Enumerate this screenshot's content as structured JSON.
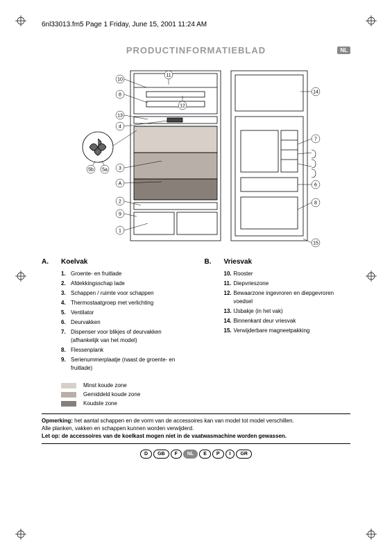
{
  "header": "6nl33013.fm5  Page 1  Friday, June 15, 2001  11:24 AM",
  "title": "PRODUCTINFORMATIEBLAD",
  "lang_tag": "NL",
  "diagram": {
    "callouts_left": [
      "10",
      "8",
      "13",
      "4",
      "5b",
      "5a",
      "3",
      "A",
      "2",
      "9",
      "1"
    ],
    "callouts_top": [
      "11",
      "12"
    ],
    "callouts_right": [
      "14",
      "7",
      "6",
      "8",
      "15"
    ],
    "fridge_zones": [
      {
        "color": "#d8d0c8"
      },
      {
        "color": "#b8b0a8"
      },
      {
        "color": "#888078"
      }
    ]
  },
  "section_a": {
    "letter": "A.",
    "title": "Koelvak",
    "items": [
      {
        "n": "1.",
        "t": "Groente- en fruitlade"
      },
      {
        "n": "2.",
        "t": "Afdekkingsschap lade"
      },
      {
        "n": "3.",
        "t": "Schappen / ruimte voor schappen"
      },
      {
        "n": "4.",
        "t": "Thermostaatgroep met verlichting"
      },
      {
        "n": "5.",
        "t": "Ventilator"
      },
      {
        "n": "6.",
        "t": "Deurvakken"
      },
      {
        "n": "7.",
        "t": "Dispenser voor blikjes of deurvakken (afhankelijk van het model)"
      },
      {
        "n": "8.",
        "t": "Flessenplank"
      },
      {
        "n": "9.",
        "t": "Serienummerplaatje (naast de groente- en fruitlade)"
      }
    ]
  },
  "section_b": {
    "letter": "B.",
    "title": "Vriesvak",
    "items": [
      {
        "n": "10.",
        "t": "Rooster"
      },
      {
        "n": "11.",
        "t": "Diepvrieszone"
      },
      {
        "n": "12.",
        "t": "Bewaarzone ingevroren en diepgevroren voedsel"
      },
      {
        "n": "13.",
        "t": "IJsbakje (in het vak)"
      },
      {
        "n": "14.",
        "t": "Binnenkant deur vriesvak"
      },
      {
        "n": "15.",
        "t": "Verwijderbare magneetpakking"
      }
    ]
  },
  "legend": [
    {
      "color": "#d8d0c8",
      "label": "Minst koude zone"
    },
    {
      "color": "#b8b0a8",
      "label": "Gemiddeld koude zone"
    },
    {
      "color": "#888078",
      "label": "Koudste zone"
    }
  ],
  "note": {
    "line1_bold": "Opmerking:",
    "line1": " het aantal schappen en de vorm van de accessoires kan van model tot model verschillen.",
    "line2": "Alle planken, vakken en schappen kunnen worden verwijderd.",
    "line3_bold": "Let op: de accessoires van de koelkast mogen niet in de vaatwasmachine worden gewassen."
  },
  "languages": [
    {
      "code": "D",
      "active": false
    },
    {
      "code": "GB",
      "active": false
    },
    {
      "code": "F",
      "active": false
    },
    {
      "code": "NL",
      "active": true
    },
    {
      "code": "E",
      "active": false
    },
    {
      "code": "P",
      "active": false
    },
    {
      "code": "I",
      "active": false
    },
    {
      "code": "GR",
      "active": false
    }
  ]
}
